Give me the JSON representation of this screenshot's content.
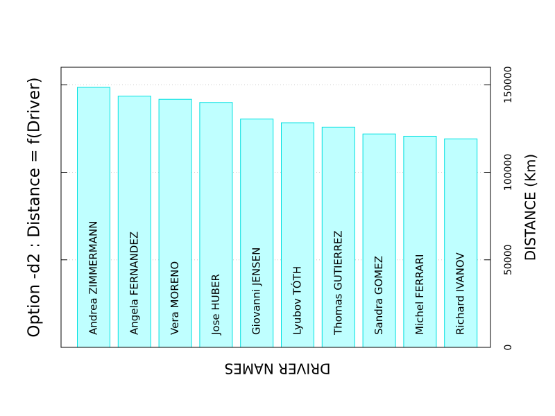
{
  "chart_data": {
    "type": "bar",
    "title": "Option -d2 : Distance = f(Driver)",
    "xlabel": "DRIVER NAMES",
    "ylabel": "DISTANCE (Km)",
    "categories": [
      "Andrea ZIMMERMANN",
      "Angela FERNANDEZ",
      "Vera MORENO",
      "Jose HUBER",
      "Giovanni JENSEN",
      "Lyubov TÓTH",
      "Thomas GUTIERREZ",
      "Sandra GOMEZ",
      "Michel FERRARI",
      "Richard IVANOV"
    ],
    "values": [
      148500,
      143500,
      141700,
      139900,
      130400,
      128300,
      125800,
      121900,
      120600,
      119100
    ],
    "ylim": [
      0,
      160000
    ],
    "yticks": [
      {
        "value": 0,
        "label": "0"
      },
      {
        "value": 50000,
        "label": "50000"
      },
      {
        "value": 100000,
        "label": "100000"
      },
      {
        "value": 150000,
        "label": "150000"
      }
    ],
    "grid": true,
    "legend": "none",
    "colors": {
      "bar_fill": "#bfffff",
      "bar_stroke": "#00e0e0",
      "grid": "#c8c8c8"
    }
  }
}
